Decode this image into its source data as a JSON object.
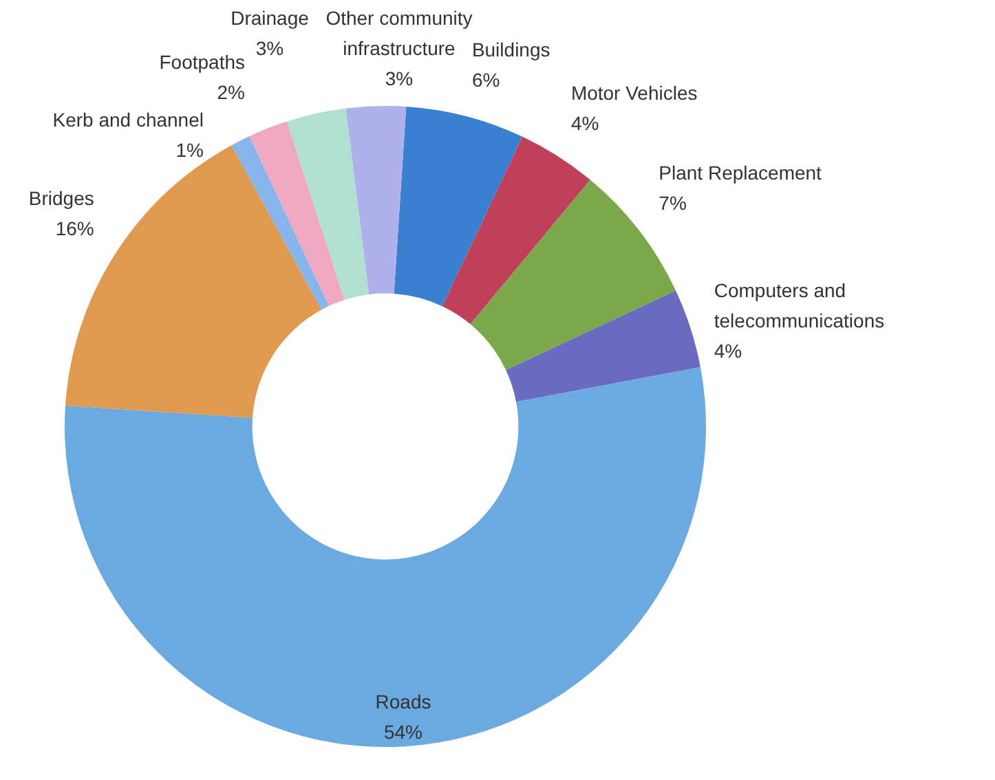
{
  "chart_data": {
    "type": "donut",
    "categories": [
      "Buildings",
      "Motor Vehicles",
      "Plant Replacement",
      "Computers and telecommunications",
      "Roads",
      "Bridges",
      "Kerb and channel",
      "Footpaths",
      "Drainage",
      "Other community infrastructure"
    ],
    "values": [
      6,
      4,
      7,
      4,
      54,
      16,
      1,
      2,
      3,
      3
    ],
    "value_labels": [
      "6%",
      "4%",
      "7%",
      "4%",
      "54%",
      "16%",
      "1%",
      "2%",
      "3%",
      "3%"
    ],
    "colors": [
      "#3a7fd0",
      "#c0405a",
      "#7aa84a",
      "#6a6ac0",
      "#6aaae0",
      "#e09a50",
      "#88b4ec",
      "#f0a8c0",
      "#b0e0d0",
      "#b0b0ec"
    ]
  }
}
